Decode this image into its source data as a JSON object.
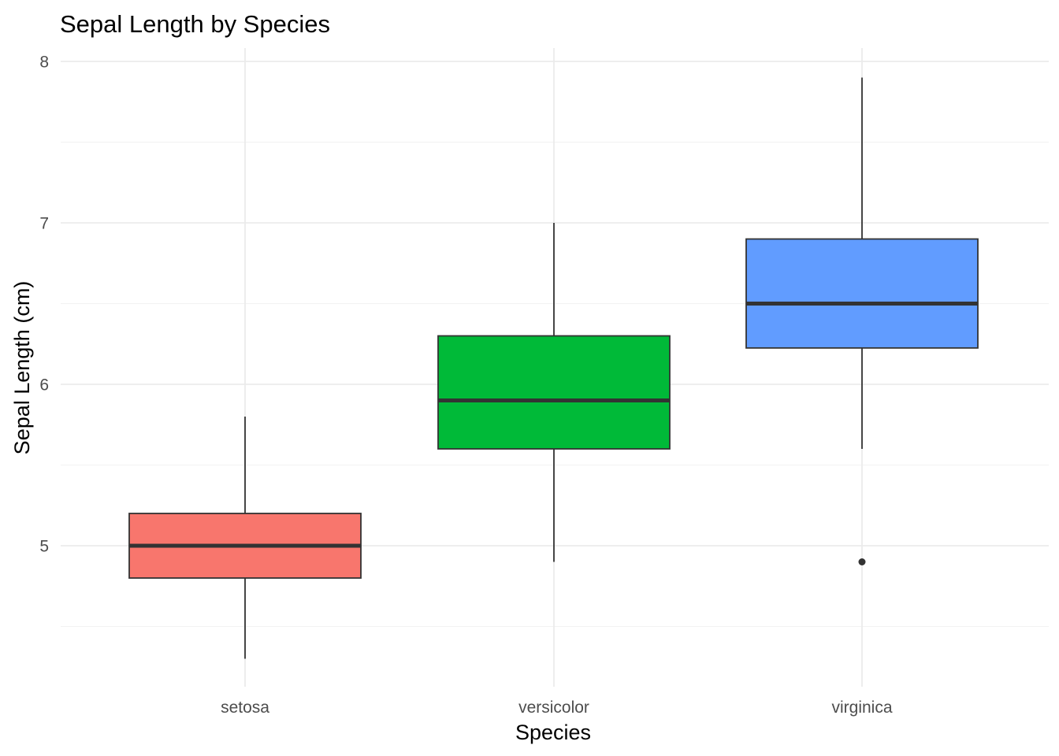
{
  "chart_data": {
    "type": "box",
    "title": "Sepal Length by Species",
    "xlabel": "Species",
    "ylabel": "Sepal Length (cm)",
    "ylim": [
      4.2,
      8.1
    ],
    "y_ticks": [
      5,
      6,
      7,
      8
    ],
    "y_minor_ticks": [
      4.5,
      5.5,
      6.5,
      7.5
    ],
    "grid": true,
    "legend": "none",
    "categories": [
      "setosa",
      "versicolor",
      "virginica"
    ],
    "boxes": [
      {
        "category": "setosa",
        "whisker_low": 4.3,
        "q1": 4.8,
        "median": 5.0,
        "q3": 5.2,
        "whisker_high": 5.8,
        "outliers": [],
        "color": "#F8766D"
      },
      {
        "category": "versicolor",
        "whisker_low": 4.9,
        "q1": 5.6,
        "median": 5.9,
        "q3": 6.3,
        "whisker_high": 7.0,
        "outliers": [],
        "color": "#00BA38"
      },
      {
        "category": "virginica",
        "whisker_low": 5.6,
        "q1": 6.225,
        "median": 6.5,
        "q3": 6.9,
        "whisker_high": 7.9,
        "outliers": [
          4.9
        ],
        "color": "#619CFF"
      }
    ]
  }
}
